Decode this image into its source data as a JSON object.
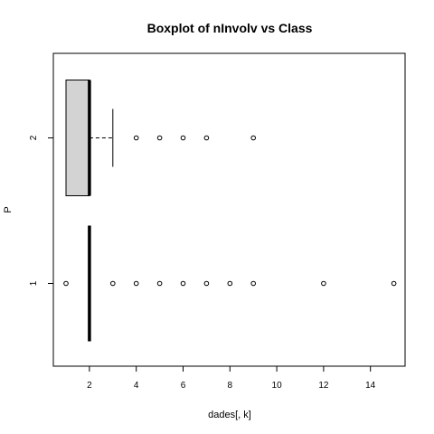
{
  "chart_data": {
    "type": "boxplot",
    "orientation": "horizontal",
    "title": "Boxplot of nInvolv vs Class",
    "xlabel": "dades[, k]",
    "ylabel": "P",
    "xlim": [
      0.5,
      15.5
    ],
    "x_ticks": [
      2,
      4,
      6,
      8,
      10,
      12,
      14
    ],
    "x_tick_labels": [
      "2",
      "4",
      "6",
      "8",
      "10",
      "12",
      "14"
    ],
    "groups": [
      {
        "label": "1",
        "q1": 2,
        "median": 2,
        "q3": 2,
        "whisker_low": 2,
        "whisker_high": 2,
        "outliers": [
          1,
          3,
          4,
          5,
          6,
          7,
          8,
          9,
          12,
          15
        ]
      },
      {
        "label": "2",
        "q1": 1,
        "median": 2,
        "q3": 2,
        "whisker_low": 1,
        "whisker_high": 3,
        "outliers": [
          4,
          5,
          6,
          7,
          9
        ]
      }
    ],
    "box_fill": "#d3d3d3",
    "grid": false,
    "legend": "none"
  }
}
